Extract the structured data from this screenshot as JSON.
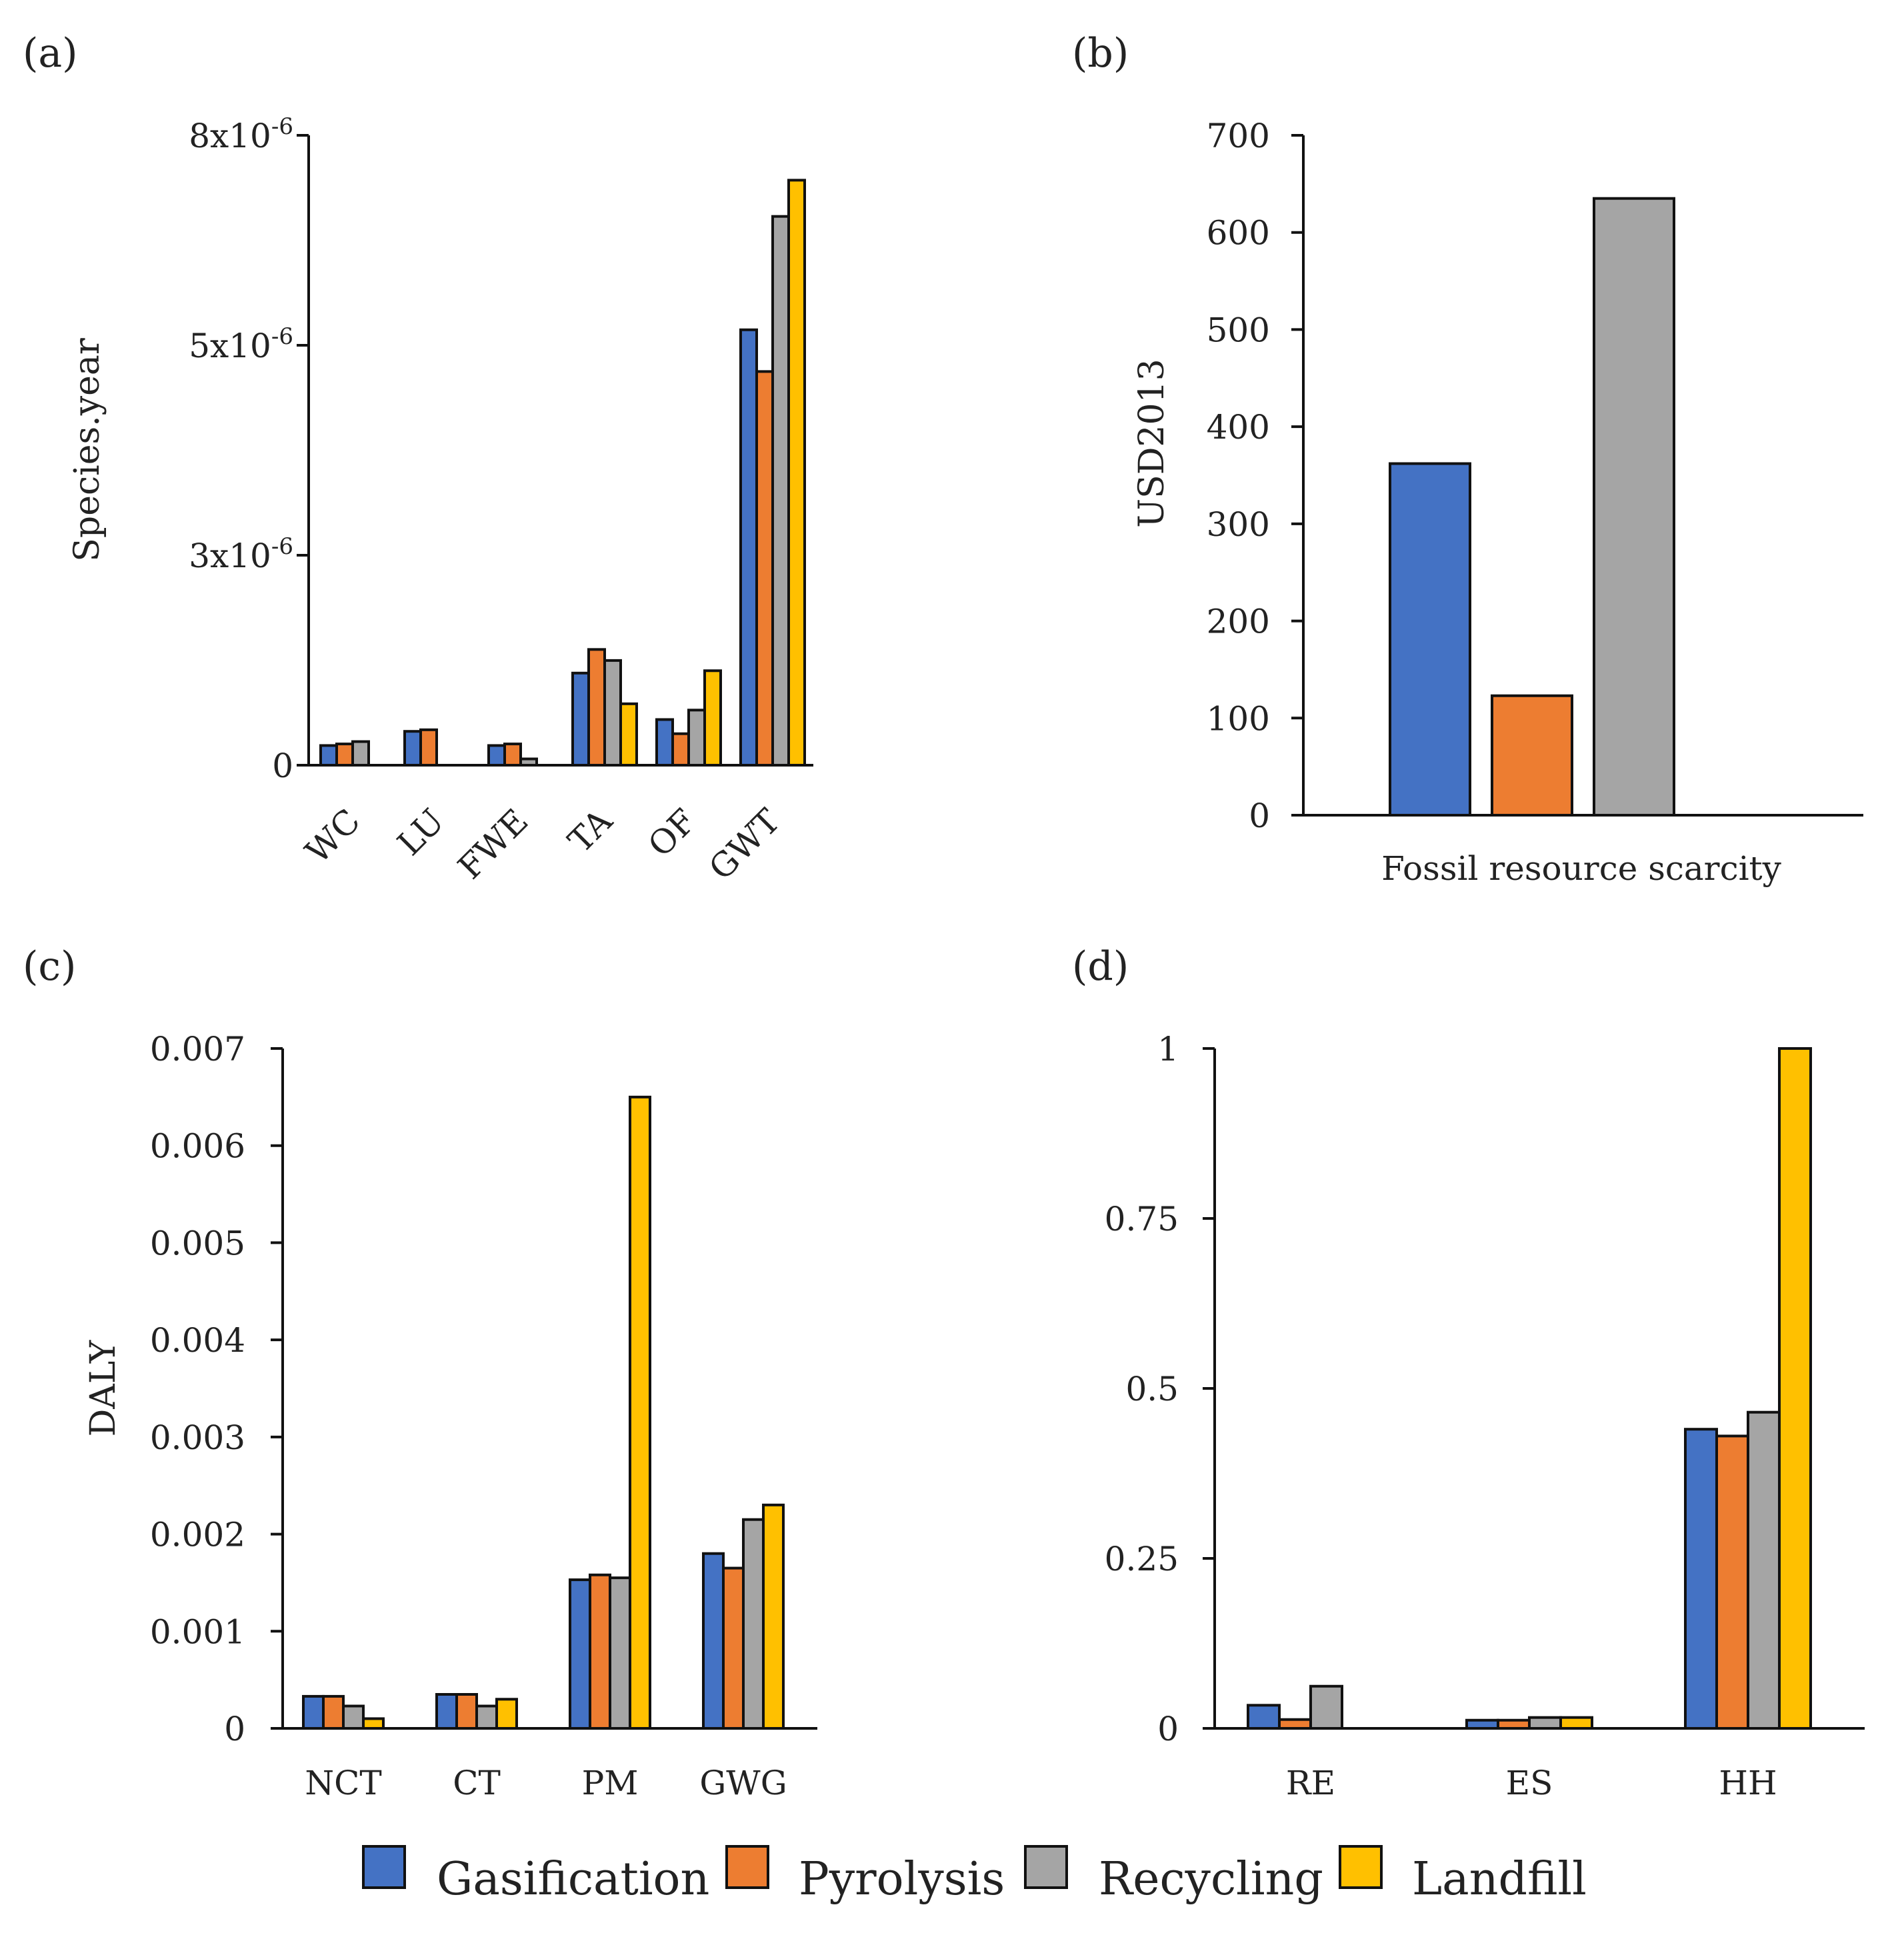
{
  "colors": {
    "Gasification": "#4472C4",
    "Pyrolysis": "#ED7D31",
    "Recycling": "#A5A5A5",
    "Landfill": "#FFC000"
  },
  "legend": [
    "Gasification",
    "Pyrolysis",
    "Recycling",
    "Landfill"
  ],
  "chart_data": [
    {
      "panel": "(a)",
      "type": "bar",
      "categories": [
        "WC",
        "LU",
        "FWE",
        "TA",
        "OF",
        "GWT"
      ],
      "series": [
        {
          "name": "Gasification",
          "values": [
            2.5e-07,
            4.3e-07,
            2.5e-07,
            1.17e-06,
            5.8e-07,
            5.53e-06
          ]
        },
        {
          "name": "Pyrolysis",
          "values": [
            2.7e-07,
            4.5e-07,
            2.7e-07,
            1.47e-06,
            4e-07,
            5e-06
          ]
        },
        {
          "name": "Recycling",
          "values": [
            3e-07,
            null,
            8e-08,
            1.33e-06,
            7e-07,
            6.97e-06
          ]
        },
        {
          "name": "Landfill",
          "values": [
            null,
            null,
            null,
            7.8e-07,
            1.2e-06,
            7.43e-06
          ]
        }
      ],
      "title": "",
      "xlabel": "",
      "ylabel": "Species.year",
      "ylim": [
        0,
        8e-06
      ],
      "yticks": [
        0,
        2.6666e-06,
        5.3333e-06,
        8e-06
      ],
      "ytick_base": [
        "0",
        "3x10",
        "5x10",
        "8x10"
      ],
      "ytick_exp": [
        "",
        "-6",
        "-6",
        "-6"
      ],
      "x_tick_rotation": -45
    },
    {
      "panel": "(b)",
      "type": "bar",
      "categories": [
        "Fossil resource scarcity"
      ],
      "series": [
        {
          "name": "Gasification",
          "values": [
            362
          ]
        },
        {
          "name": "Pyrolysis",
          "values": [
            123
          ]
        },
        {
          "name": "Recycling",
          "values": [
            635
          ]
        }
      ],
      "title": "",
      "xlabel": "",
      "ylabel": "USD2013",
      "ylim": [
        0,
        700
      ],
      "yticks": [
        0,
        100,
        200,
        300,
        400,
        500,
        600,
        700
      ],
      "ytick_labels": [
        "0",
        "100",
        "200",
        "300",
        "400",
        "500",
        "600",
        "700"
      ]
    },
    {
      "panel": "(c)",
      "type": "bar",
      "categories": [
        "NCT",
        "CT",
        "PM",
        "GWG"
      ],
      "series": [
        {
          "name": "Gasification",
          "values": [
            0.00033,
            0.00035,
            0.00153,
            0.0018
          ]
        },
        {
          "name": "Pyrolysis",
          "values": [
            0.00033,
            0.00035,
            0.00158,
            0.00165
          ]
        },
        {
          "name": "Recycling",
          "values": [
            0.00023,
            0.00023,
            0.00155,
            0.00215
          ]
        },
        {
          "name": "Landfill",
          "values": [
            0.0001,
            0.0003,
            0.0065,
            0.0023
          ]
        }
      ],
      "title": "",
      "xlabel": "",
      "ylabel": "DALY",
      "ylim": [
        0,
        0.007
      ],
      "yticks": [
        0,
        0.001,
        0.002,
        0.003,
        0.004,
        0.005,
        0.006,
        0.007
      ],
      "ytick_labels": [
        "0",
        "0.001",
        "0.002",
        "0.003",
        "0.004",
        "0.005",
        "0.006",
        "0.007"
      ]
    },
    {
      "panel": "(d)",
      "type": "bar",
      "categories": [
        "RE",
        "ES",
        "HH"
      ],
      "series": [
        {
          "name": "Gasification",
          "values": [
            0.034,
            0.012,
            0.44
          ]
        },
        {
          "name": "Pyrolysis",
          "values": [
            0.013,
            0.012,
            0.43
          ]
        },
        {
          "name": "Recycling",
          "values": [
            0.062,
            0.016,
            0.465
          ]
        },
        {
          "name": "Landfill",
          "values": [
            null,
            0.016,
            1.0
          ]
        }
      ],
      "title": "",
      "xlabel": "",
      "ylabel": "",
      "ylim": [
        0,
        1
      ],
      "yticks": [
        0,
        0.25,
        0.5,
        0.75,
        1
      ],
      "ytick_labels": [
        "0",
        "0.25",
        "0.5",
        "0.75",
        "1"
      ]
    }
  ]
}
